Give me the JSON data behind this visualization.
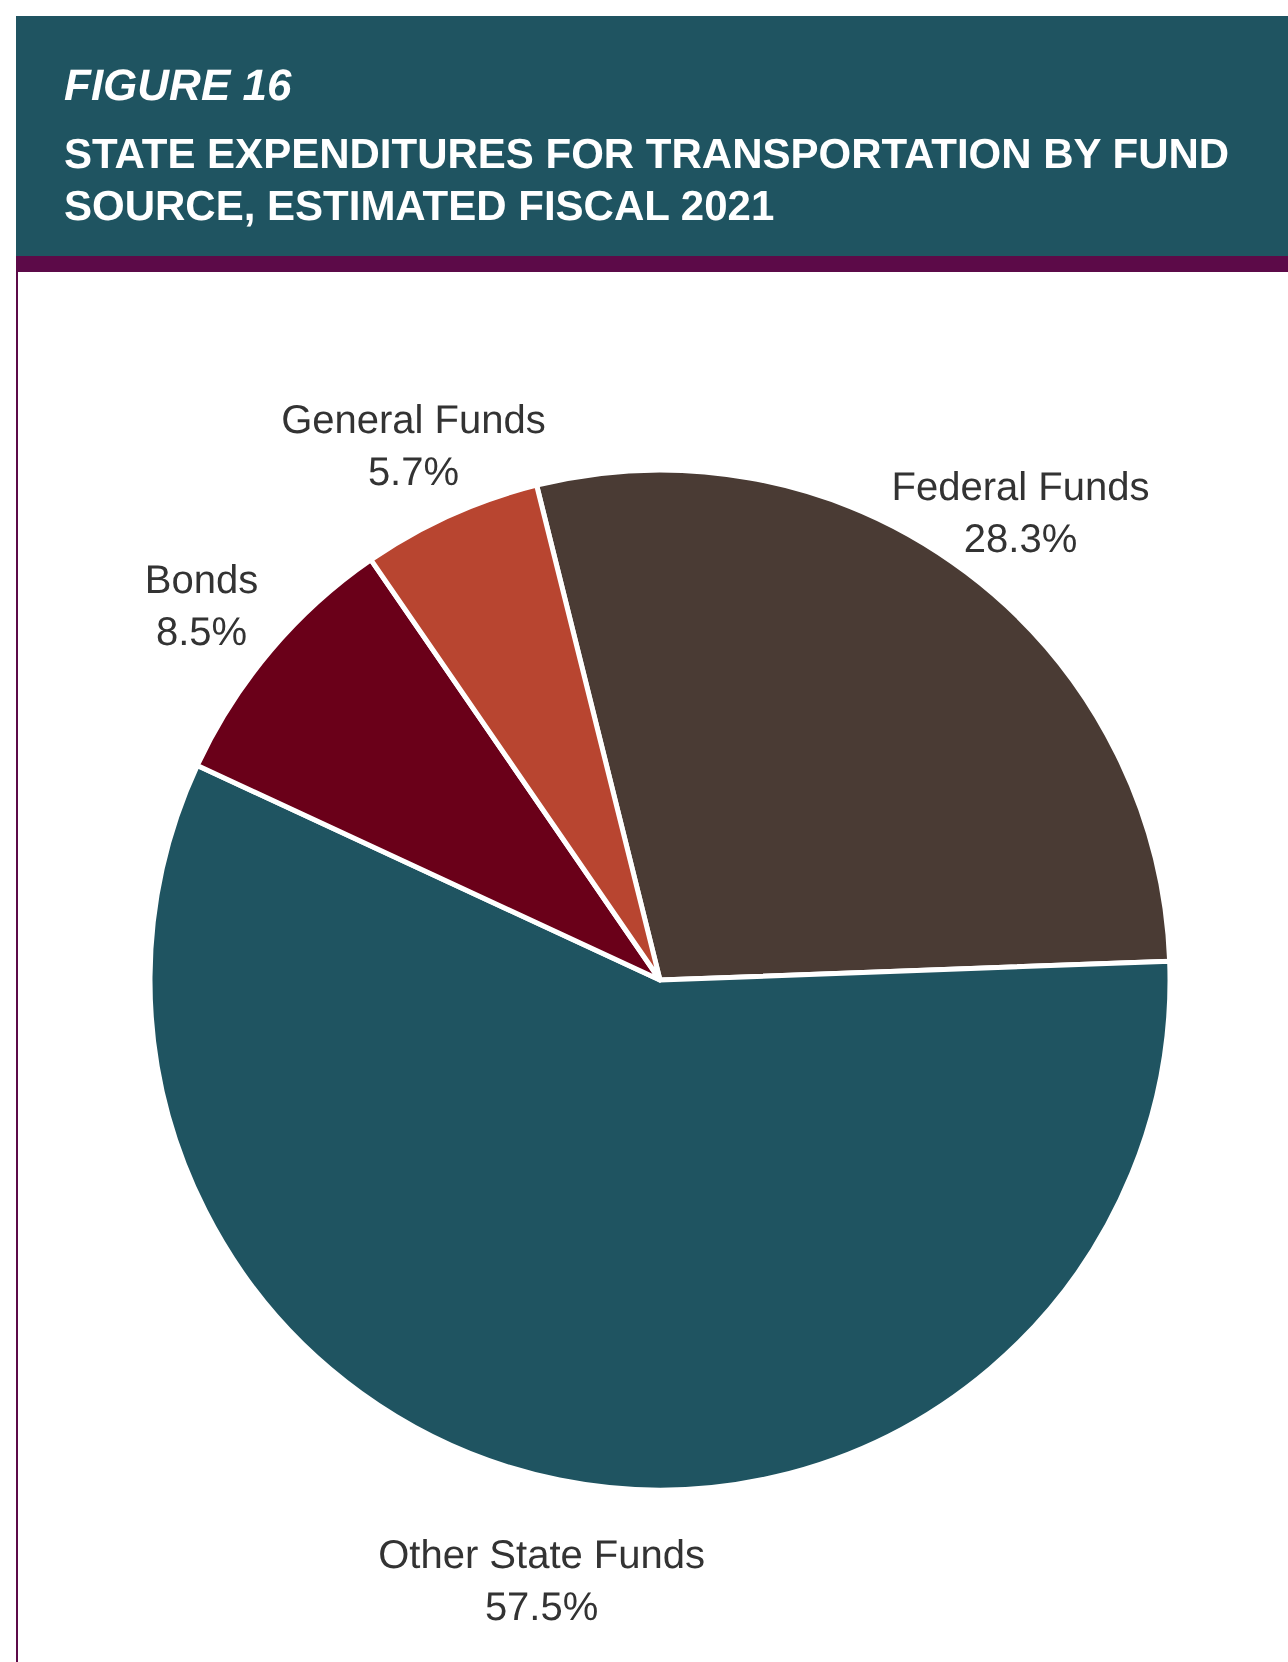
{
  "chart_data": {
    "type": "pie",
    "title": "FIGURE 16",
    "subtitle": "STATE EXPENDITURES FOR TRANSPORTATION BY FUND SOURCE, ESTIMATED FISCAL 2021",
    "categories": [
      "Federal Funds",
      "Other State Funds",
      "Bonds",
      "General Funds"
    ],
    "values": [
      28.3,
      57.5,
      8.5,
      5.7
    ],
    "value_labels": [
      "28.3%",
      "57.5%",
      "8.5%",
      "5.7%"
    ],
    "colors": [
      "#4a3b34",
      "#1f5461",
      "#6a0019",
      "#b84530"
    ]
  }
}
